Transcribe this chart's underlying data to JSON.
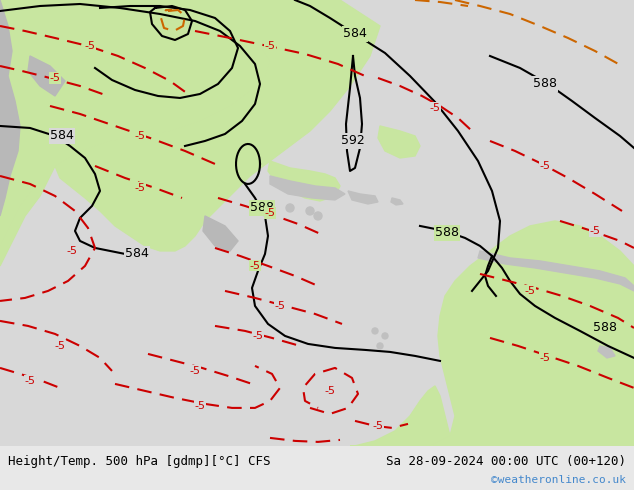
{
  "title_left": "Height/Temp. 500 hPa [gdmp][°C] CFS",
  "title_right": "Sa 28-09-2024 00:00 UTC (00+120)",
  "watermark": "©weatheronline.co.uk",
  "green_color": "#c8e6a0",
  "gray_color": "#d3d3d3",
  "light_gray": "#c8c8c8",
  "footer_bg": "#e8e8e8",
  "watermark_color": "#4488cc",
  "black": "#000000",
  "red": "#cc0000",
  "orange": "#cc6600",
  "fig_width": 6.34,
  "fig_height": 4.9,
  "dpi": 100
}
